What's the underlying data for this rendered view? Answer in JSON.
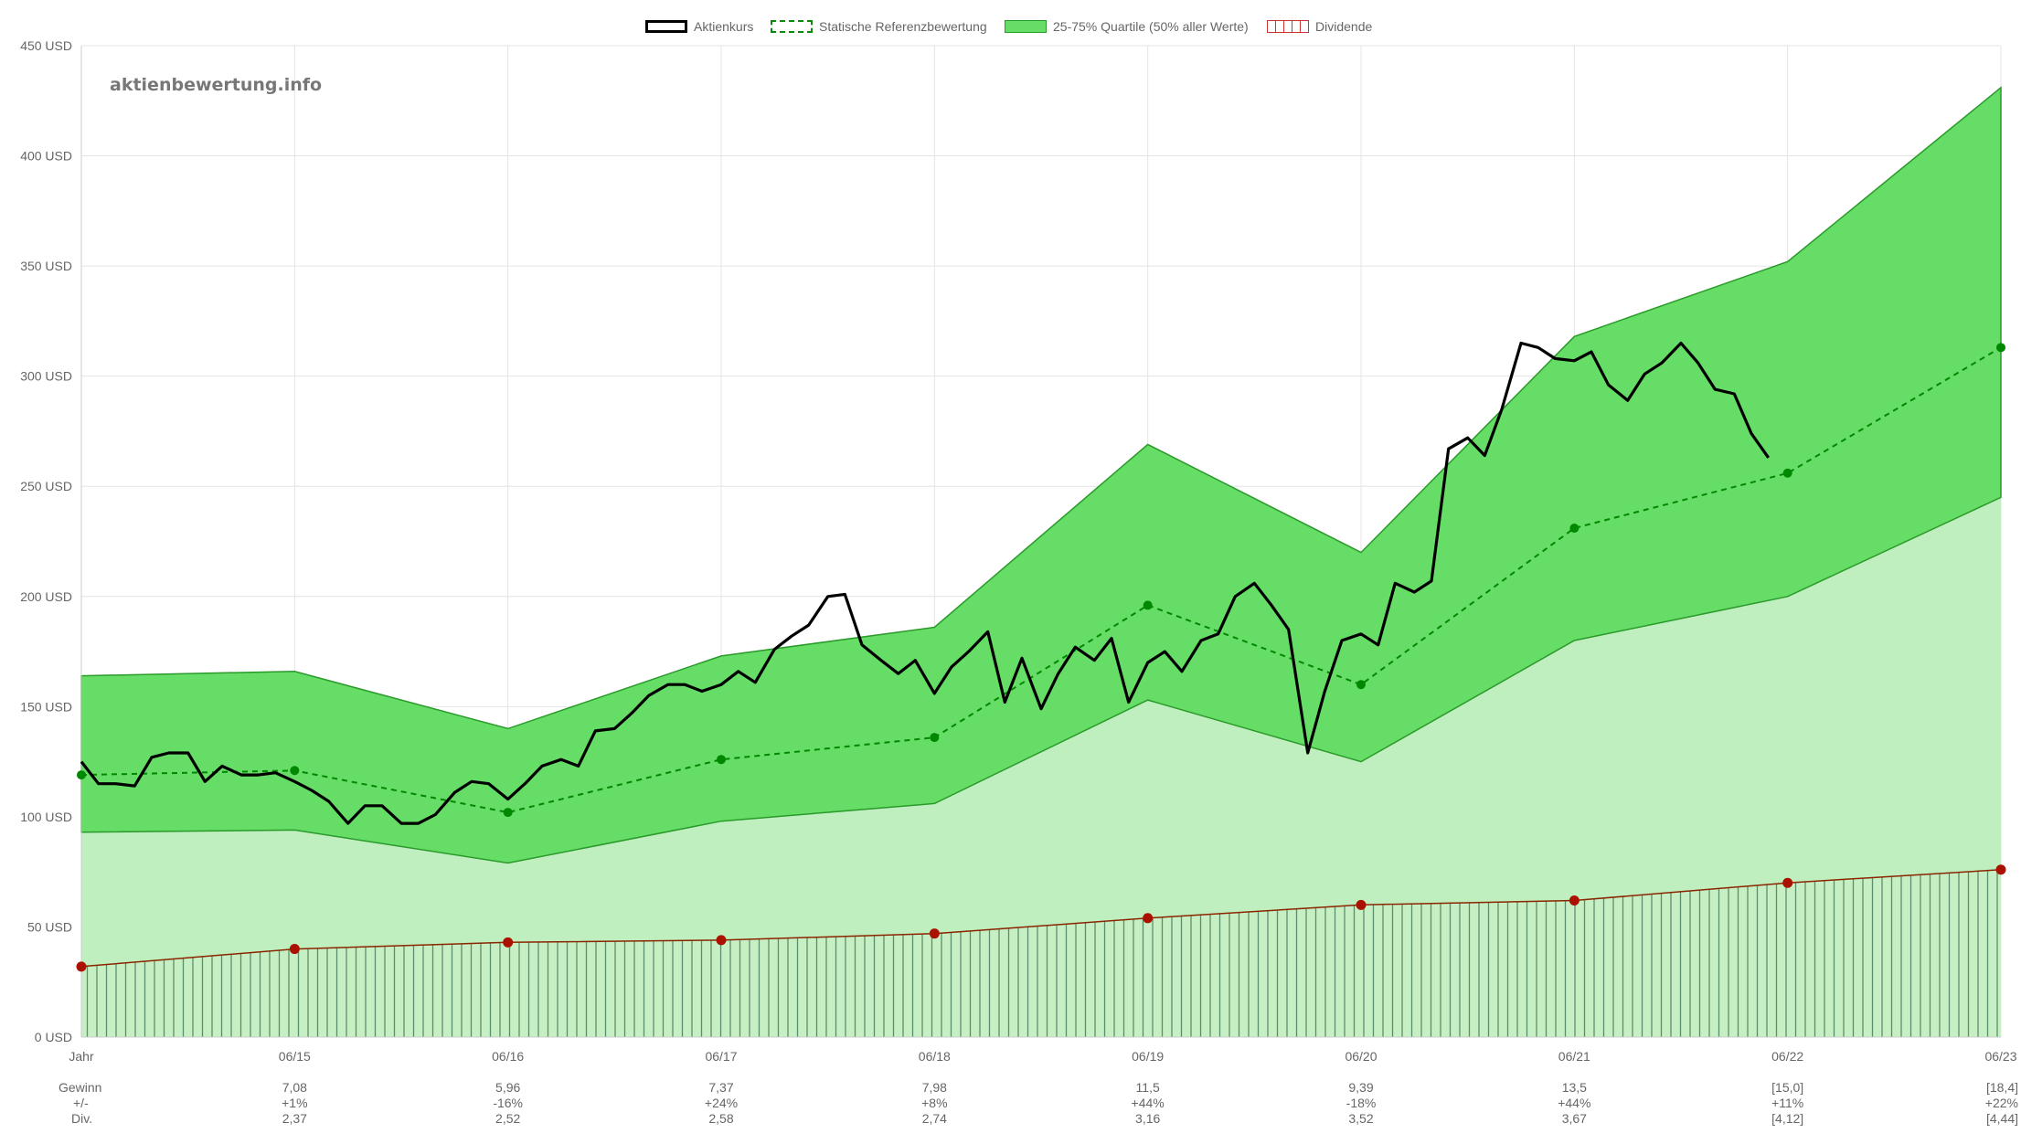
{
  "legend": [
    {
      "label": "Aktienkurs",
      "style": "solid-black"
    },
    {
      "label": "Statische Referenzbewertung",
      "style": "dashed-green"
    },
    {
      "label": "25-75% Quartile (50% aller Werte)",
      "style": "green-fill"
    },
    {
      "label": "Dividende",
      "style": "red-hatch"
    }
  ],
  "watermark": "aktienbewertung.info",
  "colors": {
    "price": "#000000",
    "reference": "#008800",
    "band_fill": "#66dd66",
    "band_line": "#2a9a2a",
    "lower_fill": "#c0efbf",
    "dividend_line": "#8b2500",
    "dividend_point": "#aa1100",
    "dividend_hatch": "#5b8f6c",
    "grid": "#e4e4e4"
  },
  "chart_data": {
    "type": "line",
    "y_unit": "USD",
    "ylim": [
      0,
      450
    ],
    "y_ticks": [
      "0 USD",
      "50 USD",
      "100 USD",
      "150 USD",
      "200 USD",
      "250 USD",
      "300 USD",
      "350 USD",
      "400 USD",
      "450 USD"
    ],
    "x_ticks": [
      "Jahr",
      "06/15",
      "06/16",
      "06/17",
      "06/18",
      "06/19",
      "06/20",
      "06/21",
      "06/22",
      "06/23"
    ],
    "x_range": [
      2014.5,
      2023.5
    ],
    "series": [
      {
        "name": "Statische Referenzbewertung",
        "x": [
          2014.5,
          2015.5,
          2016.5,
          2017.5,
          2018.5,
          2019.5,
          2020.5,
          2021.5,
          2022.5,
          2023.5
        ],
        "values": [
          119,
          121,
          102,
          126,
          136,
          196,
          160,
          231,
          256,
          313
        ]
      },
      {
        "name": "25-75% Quartile (50% aller Werte)",
        "x": [
          2014.5,
          2015.5,
          2016.5,
          2017.5,
          2018.5,
          2019.5,
          2020.5,
          2021.5,
          2022.5,
          2023.5
        ],
        "upper": [
          164,
          166,
          140,
          173,
          186,
          269,
          220,
          318,
          352,
          431
        ],
        "lower": [
          93,
          94,
          79,
          98,
          106,
          153,
          125,
          180,
          200,
          245
        ]
      },
      {
        "name": "Dividende",
        "x": [
          2014.5,
          2015.5,
          2016.5,
          2017.5,
          2018.5,
          2019.5,
          2020.5,
          2021.5,
          2022.5,
          2023.5
        ],
        "values": [
          32,
          40,
          43,
          44,
          47,
          54,
          60,
          62,
          70,
          76
        ]
      },
      {
        "name": "Aktienkurs",
        "x": [
          2014.5,
          2014.58,
          2014.66,
          2014.75,
          2014.83,
          2014.91,
          2015.0,
          2015.08,
          2015.16,
          2015.25,
          2015.33,
          2015.41,
          2015.5,
          2015.58,
          2015.66,
          2015.75,
          2015.83,
          2015.91,
          2016.0,
          2016.08,
          2016.16,
          2016.25,
          2016.33,
          2016.41,
          2016.5,
          2016.58,
          2016.66,
          2016.75,
          2016.83,
          2016.91,
          2017.0,
          2017.08,
          2017.16,
          2017.25,
          2017.33,
          2017.41,
          2017.5,
          2017.58,
          2017.66,
          2017.75,
          2017.83,
          2017.91,
          2018.0,
          2018.08,
          2018.16,
          2018.25,
          2018.33,
          2018.41,
          2018.5,
          2018.58,
          2018.66,
          2018.75,
          2018.83,
          2018.91,
          2019.0,
          2019.08,
          2019.16,
          2019.25,
          2019.33,
          2019.41,
          2019.5,
          2019.58,
          2019.66,
          2019.75,
          2019.83,
          2019.91,
          2020.0,
          2020.08,
          2020.16,
          2020.25,
          2020.33,
          2020.41,
          2020.5,
          2020.58,
          2020.66,
          2020.75,
          2020.83,
          2020.91,
          2021.0,
          2021.08,
          2021.16,
          2021.25,
          2021.33,
          2021.41,
          2021.5,
          2021.58,
          2021.66,
          2021.75,
          2021.83,
          2021.91,
          2022.0,
          2022.08,
          2022.16,
          2022.25,
          2022.33,
          2022.41
        ],
        "values": [
          125,
          115,
          115,
          114,
          127,
          129,
          129,
          116,
          123,
          119,
          119,
          120,
          116,
          112,
          107,
          97,
          105,
          105,
          97,
          97,
          101,
          111,
          116,
          115,
          108,
          115,
          123,
          126,
          123,
          139,
          140,
          147,
          155,
          160,
          160,
          157,
          160,
          166,
          161,
          176,
          182,
          187,
          200,
          201,
          178,
          171,
          165,
          171,
          156,
          168,
          175,
          184,
          152,
          172,
          149,
          165,
          177,
          171,
          181,
          152,
          170,
          175,
          166,
          180,
          183,
          200,
          206,
          196,
          185,
          129,
          157,
          180,
          183,
          178,
          206,
          202,
          207,
          267,
          272,
          264,
          285,
          315,
          313,
          308,
          307,
          311,
          296,
          289,
          301,
          306,
          315,
          306,
          294,
          292,
          274,
          263
        ]
      }
    ]
  },
  "table": {
    "row_labels": [
      "Gewinn",
      "+/-",
      "Div."
    ],
    "columns": [
      {
        "gewinn": "7,08",
        "change": "+1%",
        "div": "2,37"
      },
      {
        "gewinn": "5,96",
        "change": "-16%",
        "div": "2,52"
      },
      {
        "gewinn": "7,37",
        "change": "+24%",
        "div": "2,58"
      },
      {
        "gewinn": "7,98",
        "change": "+8%",
        "div": "2,74"
      },
      {
        "gewinn": "11,5",
        "change": "+44%",
        "div": "3,16"
      },
      {
        "gewinn": "9,39",
        "change": "-18%",
        "div": "3,52"
      },
      {
        "gewinn": "13,5",
        "change": "+44%",
        "div": "3,67"
      },
      {
        "gewinn": "[15,0]",
        "change": "+11%",
        "div": "[4,12]"
      },
      {
        "gewinn": "[18,4]",
        "change": "+22%",
        "div": "[4,44]"
      }
    ]
  }
}
